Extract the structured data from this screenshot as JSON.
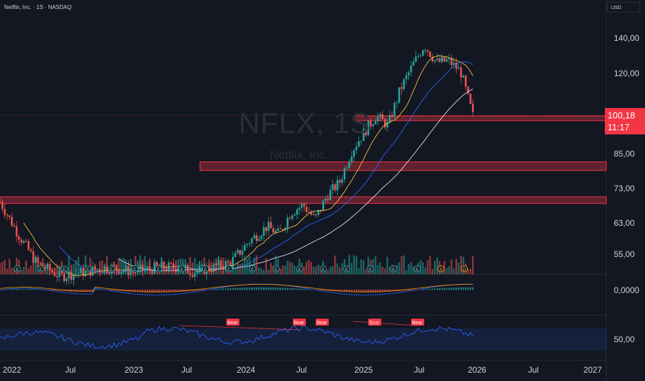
{
  "header": {
    "title": "Netflix, Inc. · 1S · NASDAQ",
    "currency": "USD"
  },
  "watermark": {
    "symbol": "NFLX, 1S",
    "name": "Netflix, Inc."
  },
  "last_price": {
    "value": "100,18",
    "countdown": "11:17"
  },
  "colors": {
    "background": "#131722",
    "up": "#26a69a",
    "down": "#ef5350",
    "zone": "#f23645",
    "blue_ma": "#2962ff",
    "rsi": "#2962ff"
  },
  "chart_data": {
    "type": "candlestick",
    "symbol": "NFLX",
    "y_scale": "log",
    "y_ticks": [
      "140,00",
      "120,00",
      "100,18",
      "85,00",
      "73,00",
      "63,00",
      "55,00"
    ],
    "x_ticks": [
      "2022",
      "Jul",
      "2023",
      "Jul",
      "2024",
      "Jul",
      "2025",
      "Jul",
      "2026",
      "Jul",
      "2027"
    ],
    "zones": [
      {
        "low": 98,
        "high": 100
      },
      {
        "low": 79,
        "high": 82
      },
      {
        "low": 68.5,
        "high": 70.5
      }
    ],
    "close_path": [
      {
        "t": 0.0,
        "p": 69
      },
      {
        "t": 0.03,
        "p": 60
      },
      {
        "t": 0.06,
        "p": 53
      },
      {
        "t": 0.1,
        "p": 50
      },
      {
        "t": 0.14,
        "p": 51
      },
      {
        "t": 0.18,
        "p": 52
      },
      {
        "t": 0.22,
        "p": 51
      },
      {
        "t": 0.26,
        "p": 52
      },
      {
        "t": 0.29,
        "p": 52
      },
      {
        "t": 0.32,
        "p": 51
      },
      {
        "t": 0.35,
        "p": 52
      },
      {
        "t": 0.38,
        "p": 53
      },
      {
        "t": 0.41,
        "p": 58
      },
      {
        "t": 0.44,
        "p": 62
      },
      {
        "t": 0.46,
        "p": 60
      },
      {
        "t": 0.48,
        "p": 66
      },
      {
        "t": 0.5,
        "p": 68
      },
      {
        "t": 0.52,
        "p": 64
      },
      {
        "t": 0.54,
        "p": 71
      },
      {
        "t": 0.56,
        "p": 75
      },
      {
        "t": 0.58,
        "p": 86
      },
      {
        "t": 0.6,
        "p": 93
      },
      {
        "t": 0.62,
        "p": 100
      },
      {
        "t": 0.64,
        "p": 96
      },
      {
        "t": 0.66,
        "p": 112
      },
      {
        "t": 0.68,
        "p": 124
      },
      {
        "t": 0.7,
        "p": 136
      },
      {
        "t": 0.72,
        "p": 126
      },
      {
        "t": 0.74,
        "p": 127
      },
      {
        "t": 0.76,
        "p": 121
      },
      {
        "t": 0.78,
        "p": 100
      }
    ],
    "indicators": {
      "macd_zero": "0,0000",
      "rsi_level": "50,00",
      "rsi_labels": [
        "Bear",
        "Bear",
        "Bear",
        "Bear",
        "Bear"
      ]
    },
    "event_markers": [
      "E",
      "E",
      "E",
      "E",
      "E",
      "E",
      "E",
      "E",
      "E",
      "E",
      "E",
      "E",
      "E",
      "E",
      "E",
      "E",
      "E",
      "E",
      "S",
      "D"
    ]
  }
}
